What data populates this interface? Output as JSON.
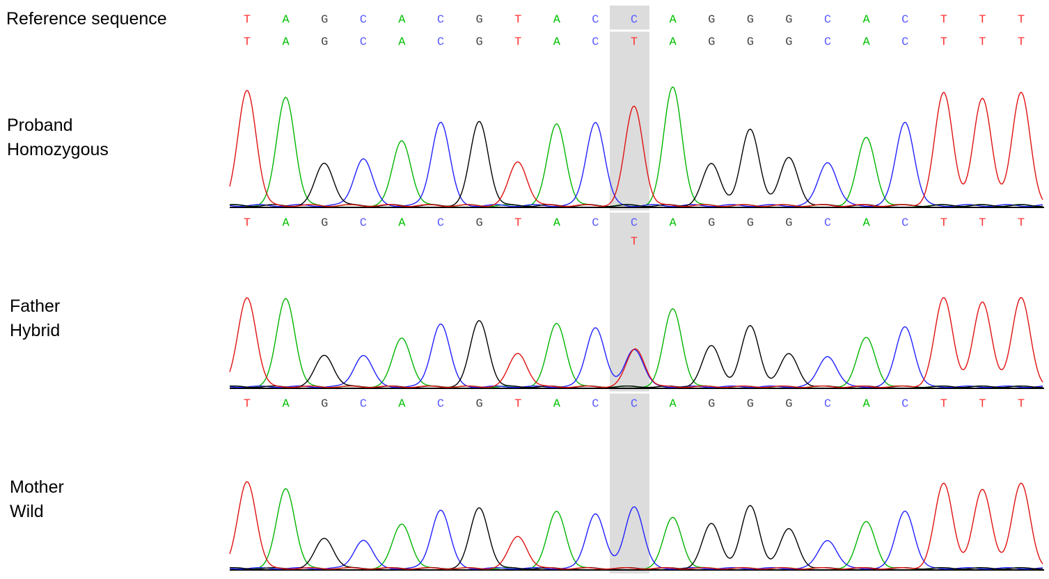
{
  "reference": {
    "label": "Reference sequence",
    "bases": [
      "T",
      "A",
      "G",
      "C",
      "A",
      "C",
      "G",
      "T",
      "A",
      "C",
      "C",
      "A",
      "G",
      "G",
      "G",
      "C",
      "A",
      "C",
      "T",
      "T",
      "T"
    ]
  },
  "samples": [
    {
      "name": "Proband",
      "genotype": "Homozygous",
      "calls": [
        "T",
        "A",
        "G",
        "C",
        "A",
        "C",
        "G",
        "T",
        "A",
        "C",
        "T",
        "A",
        "G",
        "G",
        "G",
        "C",
        "A",
        "C",
        "T",
        "T",
        "T"
      ]
    },
    {
      "name": "Father",
      "genotype": "Hybrid",
      "calls": [
        "T",
        "A",
        "G",
        "C",
        "A",
        "C",
        "G",
        "T",
        "A",
        "C",
        [
          "C",
          "T"
        ],
        "A",
        "G",
        "G",
        "G",
        "C",
        "A",
        "C",
        "T",
        "T",
        "T"
      ]
    },
    {
      "name": "Mother",
      "genotype": "Wild",
      "calls": [
        "T",
        "A",
        "G",
        "C",
        "A",
        "C",
        "G",
        "T",
        "A",
        "C",
        "C",
        "A",
        "G",
        "G",
        "G",
        "C",
        "A",
        "C",
        "T",
        "T",
        "T"
      ]
    }
  ]
}
